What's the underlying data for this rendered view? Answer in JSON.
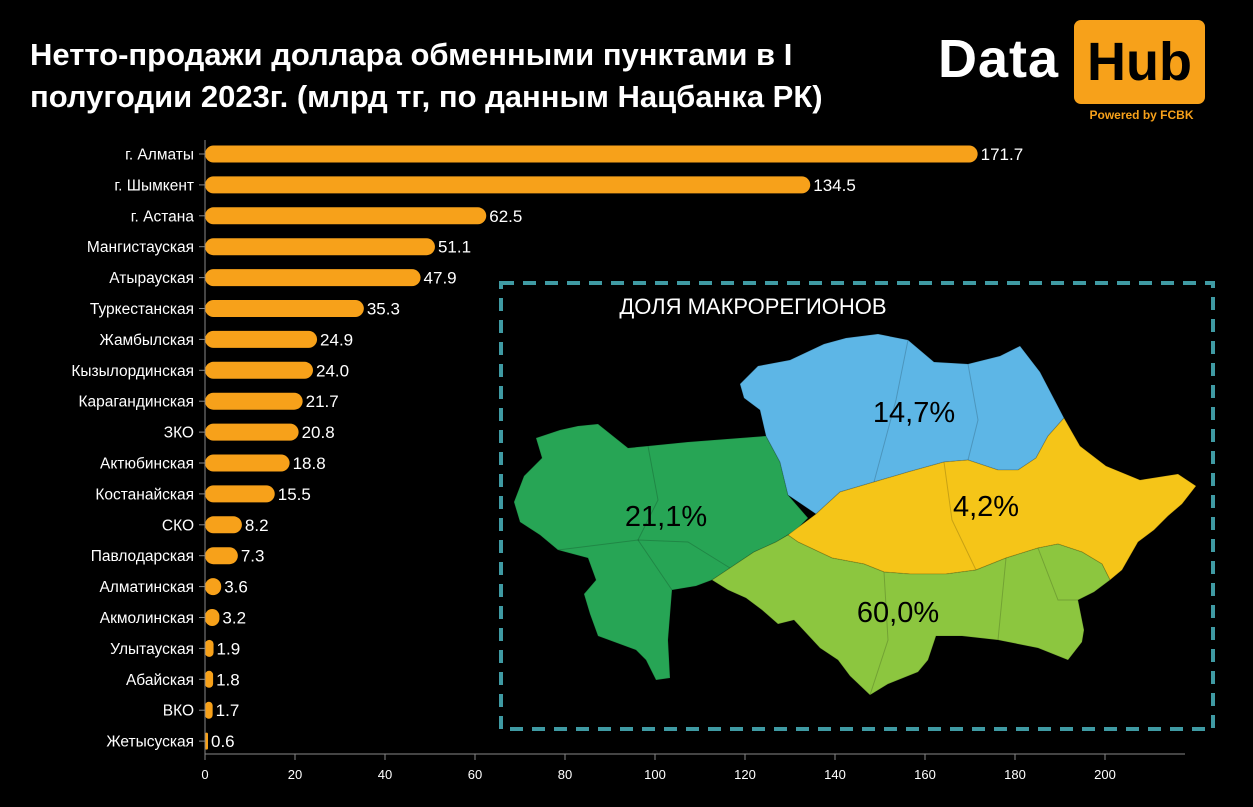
{
  "title": "Нетто-продажи доллара обменными пунктами в I полугодии 2023г. (млрд тг, по данным Нацбанка РК)",
  "logo": {
    "word1": "Data",
    "word2": "Hub",
    "tagline": "Powered by FCBK"
  },
  "colors": {
    "background": "#000000",
    "bar": "#f7a11a",
    "accent": "#f7a11a",
    "inset_border": "#3f9aa3"
  },
  "chart_data": {
    "type": "bar",
    "orientation": "horizontal",
    "title": "Нетто-продажи доллара обменными пунктами в I полугодии 2023г. (млрд тг, по данным Нацбанка РК)",
    "categories": [
      "г. Алматы",
      "г. Шымкент",
      "г. Астана",
      "Мангистауская",
      "Атырауская",
      "Туркестанская",
      "Жамбылская",
      "Кызылординская",
      "Карагандинская",
      "ЗКО",
      "Актюбинская",
      "Костанайская",
      "СКО",
      "Павлодарская",
      "Алматинская",
      "Акмолинская",
      "Улытауская",
      "Абайская",
      "ВКО",
      "Жетысуская"
    ],
    "values": [
      171.7,
      134.5,
      62.5,
      51.1,
      47.9,
      35.3,
      24.9,
      24.0,
      21.7,
      20.8,
      18.8,
      15.5,
      8.2,
      7.3,
      3.6,
      3.2,
      1.9,
      1.8,
      1.7,
      0.6
    ],
    "value_labels": [
      "171.7",
      "134.5",
      "62.5",
      "51.1",
      "47.9",
      "35.3",
      "24.9",
      "24.0",
      "21.7",
      "20.8",
      "18.8",
      "15.5",
      "8.2",
      "7.3",
      "3.6",
      "3.2",
      "1.9",
      "1.8",
      "1.7",
      "0.6"
    ],
    "xlim": [
      0,
      220
    ],
    "xticks": [
      0,
      20,
      40,
      60,
      80,
      100,
      120,
      140,
      160,
      180,
      200
    ],
    "grid": false,
    "xlabel": "",
    "ylabel": ""
  },
  "inset": {
    "title": "ДОЛЯ МАКРОРЕГИОНОВ",
    "regions": [
      {
        "label": "21,1%",
        "value": 21.1,
        "color": "#27a555"
      },
      {
        "label": "14,7%",
        "value": 14.7,
        "color": "#5db6e6"
      },
      {
        "label": "4,2%",
        "value": 4.2,
        "color": "#f5c518"
      },
      {
        "label": "60,0%",
        "value": 60.0,
        "color": "#8cc63f"
      }
    ]
  }
}
